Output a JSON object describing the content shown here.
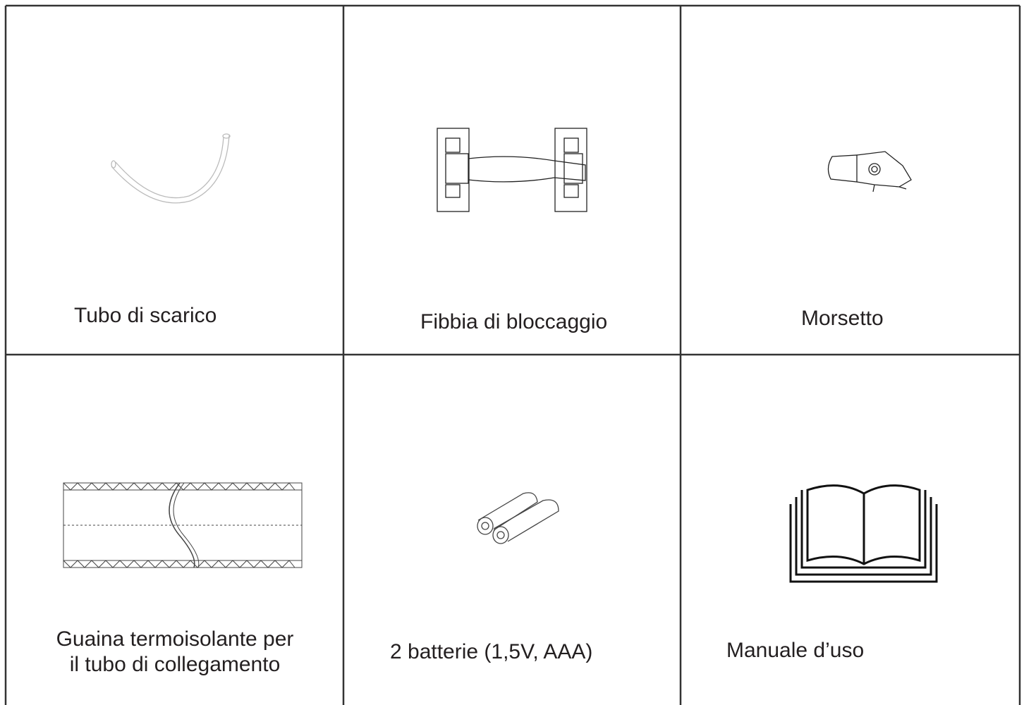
{
  "table": {
    "rows": [
      [
        {
          "label": [
            "Tubo di scarico"
          ]
        },
        {
          "label": [
            "Fibbia di bloccaggio"
          ]
        },
        {
          "label": [
            "Morsetto"
          ]
        }
      ],
      [
        {
          "label": [
            "Guaina termoisolante per",
            "il tubo di collegamento"
          ]
        },
        {
          "label": [
            "2 batterie (1,5V, AAA)"
          ]
        },
        {
          "label": [
            "Manuale d’uso"
          ]
        }
      ]
    ]
  }
}
